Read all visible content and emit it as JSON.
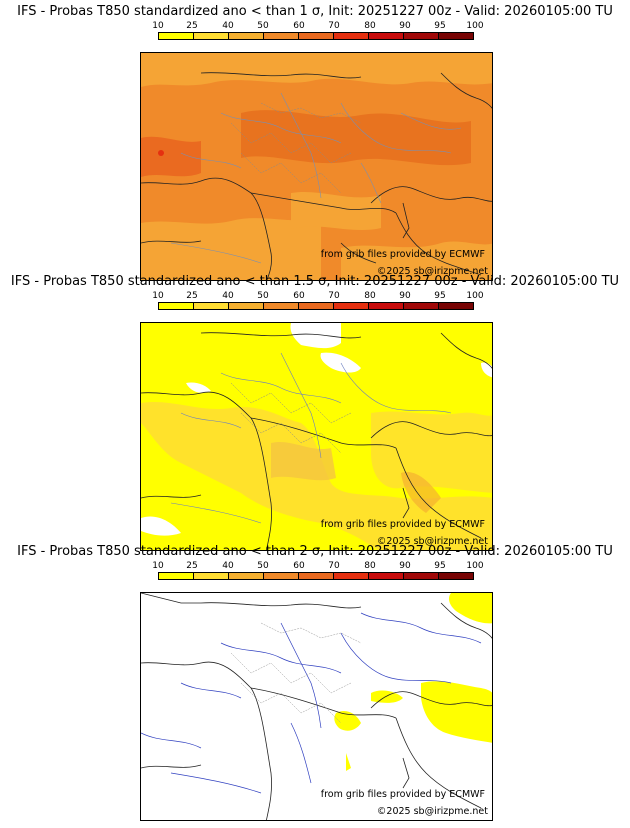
{
  "colorbar": {
    "ticks": [
      "10",
      "25",
      "40",
      "50",
      "60",
      "70",
      "80",
      "90",
      "95",
      "100"
    ],
    "colors": [
      "#ffff00",
      "#ffdd33",
      "#f5b030",
      "#f08a2a",
      "#ea6a20",
      "#e53010",
      "#c80c0c",
      "#a00808",
      "#780404"
    ]
  },
  "panels": [
    {
      "title": "IFS - Probas T850  standardized ano < than 1 σ, Init: 20251227 00z - Valid: 20260105:00 TU",
      "credit_source": "from grib files provided by ECMWF",
      "credit_copyright": "©2025 sb@irizpme.net",
      "dominant_color": "#f08a2a"
    },
    {
      "title": "IFS - Probas T850  standardized ano < than 1.5 σ, Init: 20251227 00z - Valid: 20260105:00 TU",
      "credit_source": "from grib files provided by ECMWF",
      "credit_copyright": "©2025 sb@irizpme.net",
      "dominant_color": "#ffff00"
    },
    {
      "title": "IFS - Probas T850  standardized ano < than 2 σ, Init: 20251227 00z - Valid: 20260105:00 TU",
      "credit_source": "from grib files provided by ECMWF",
      "credit_copyright": "©2025 sb@irizpme.net",
      "dominant_color": "#ffffff"
    }
  ]
}
